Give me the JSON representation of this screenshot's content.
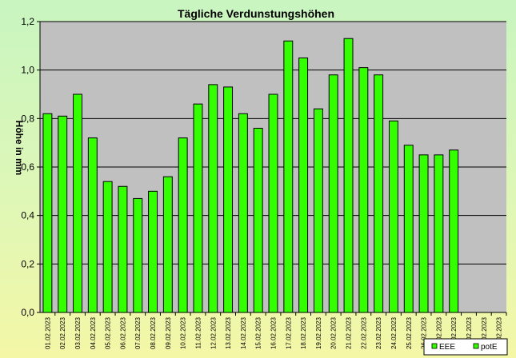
{
  "chart_data": {
    "type": "bar",
    "title": "Tägliche Verdunstungshöhen",
    "ylabel": "Höhe in mm",
    "xlabel": "",
    "ylim": [
      0,
      1.2
    ],
    "yticks": [
      "0,0",
      "0,2",
      "0,4",
      "0,6",
      "0,8",
      "1,0",
      "1,2"
    ],
    "grid": true,
    "legend_position": "bottom-right",
    "categories": [
      "01.02.2023",
      "02.02.2023",
      "03.02.2023",
      "04.02.2023",
      "05.02.2023",
      "06.02.2023",
      "07.02.2023",
      "08.02.2023",
      "09.02.2023",
      "10.02.2023",
      "11.02.2023",
      "12.02.2023",
      "13.02.2023",
      "14.02.2023",
      "15.02.2023",
      "16.02.2023",
      "17.02.2023",
      "18.02.2023",
      "19.02.2023",
      "20.02.2023",
      "21.02.2023",
      "22.02.2023",
      "23.02.2023",
      "24.02.2023",
      "25.02.2023",
      "26.02.2023",
      "27.02.2023",
      "28.02.2023",
      "29.02.2023",
      "30.02.2023",
      "31.02.2023"
    ],
    "series": [
      {
        "name": "EEE",
        "values": [
          null,
          null,
          null,
          null,
          null,
          null,
          null,
          null,
          null,
          null,
          null,
          null,
          null,
          null,
          null,
          null,
          null,
          null,
          null,
          null,
          null,
          null,
          null,
          null,
          null,
          null,
          null,
          null,
          null,
          null,
          null
        ],
        "color": "#33ff00"
      },
      {
        "name": "potE",
        "values": [
          0.82,
          0.81,
          0.9,
          0.72,
          0.54,
          0.52,
          0.47,
          0.5,
          0.56,
          0.72,
          0.86,
          0.94,
          0.93,
          0.82,
          0.76,
          0.9,
          1.12,
          1.05,
          0.84,
          0.98,
          1.13,
          1.01,
          0.98,
          0.79,
          0.69,
          0.65,
          0.65,
          0.67,
          null,
          null,
          null
        ],
        "color": "#33ff00"
      }
    ],
    "colors": {
      "plot_bg": "#c0c0c0",
      "bar": "#33ff00",
      "bar_stroke": "#000000"
    }
  }
}
